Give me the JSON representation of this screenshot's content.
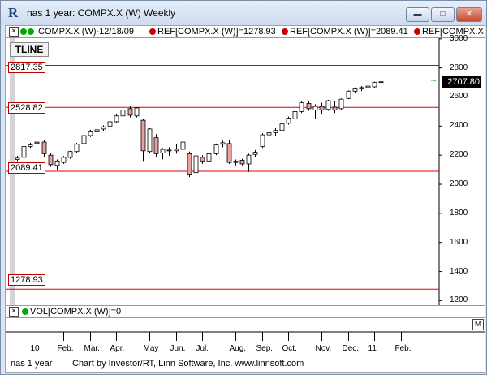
{
  "window": {
    "title": "nas 1 year: COMPX.X (W) Weekly",
    "buttons": {
      "minimize": "▬",
      "maximize": "□",
      "close": "✕"
    }
  },
  "header": {
    "close_symbol": "×",
    "series": "COMPX.X (W)-12/18/09",
    "ref1": "REF[COMPX.X (W)]=1278.93",
    "ref2": "REF[COMPX.X (W)]=2089.41",
    "ref3": "REF[COMPX.X"
  },
  "tline_button": "TLINE",
  "price_tags": {
    "r1": "2817.35",
    "r2": "2528.82",
    "r3": "2089.41",
    "r4": "1278.93"
  },
  "last_price": "2707.80",
  "last_marker": "→",
  "volume_row": {
    "close_symbol": "×",
    "label": "VOL[COMPX.X (W)]=0"
  },
  "bottom_marker": "M",
  "status": {
    "name": "nas 1 year",
    "credit": "Chart by Investor/RT, Linn Software, Inc. www.linnsoft.com"
  },
  "colors": {
    "up_candle": "#ffffff",
    "down_candle": "#e8a0a0",
    "ref_line": "#e00000",
    "last_price_bg": "#000000",
    "ref_dot": "#cc0000",
    "series_dot": "#00aa00"
  },
  "chart_data": {
    "type": "candlestick",
    "y_ticks": [
      1200,
      1400,
      1600,
      1800,
      2000,
      2200,
      2400,
      2600,
      2800,
      3000
    ],
    "y_tick_labels": [
      "1200",
      "1400",
      "1600",
      "1800",
      "2000",
      "2200",
      "2400",
      "2600",
      "2800",
      "3000"
    ],
    "ylim": [
      1180,
      3010
    ],
    "x_ticks": [
      {
        "label": "10",
        "week": 3
      },
      {
        "label": "Feb.",
        "week": 7
      },
      {
        "label": "Mar.",
        "week": 11
      },
      {
        "label": "Apr.",
        "week": 15
      },
      {
        "label": "May",
        "week": 20
      },
      {
        "label": "Jun.",
        "week": 24
      },
      {
        "label": "Jul.",
        "week": 28
      },
      {
        "label": "Aug.",
        "week": 33
      },
      {
        "label": "Sep.",
        "week": 37
      },
      {
        "label": "Oct.",
        "week": 41
      },
      {
        "label": "Nov.",
        "week": 46
      },
      {
        "label": "Dec.",
        "week": 50
      },
      {
        "label": "11",
        "week": 54
      },
      {
        "label": "Feb.",
        "week": 58
      }
    ],
    "ref_lines": [
      2817.35,
      2528.82,
      2089.41,
      1278.93
    ],
    "candles": [
      {
        "o": 2170,
        "h": 2195,
        "l": 2160,
        "c": 2180
      },
      {
        "o": 2185,
        "h": 2270,
        "l": 2175,
        "c": 2260
      },
      {
        "o": 2260,
        "h": 2285,
        "l": 2250,
        "c": 2270
      },
      {
        "o": 2290,
        "h": 2310,
        "l": 2265,
        "c": 2280
      },
      {
        "o": 2290,
        "h": 2305,
        "l": 2190,
        "c": 2210
      },
      {
        "o": 2200,
        "h": 2215,
        "l": 2120,
        "c": 2135
      },
      {
        "o": 2130,
        "h": 2170,
        "l": 2100,
        "c": 2160
      },
      {
        "o": 2150,
        "h": 2195,
        "l": 2140,
        "c": 2185
      },
      {
        "o": 2185,
        "h": 2230,
        "l": 2175,
        "c": 2225
      },
      {
        "o": 2225,
        "h": 2285,
        "l": 2215,
        "c": 2275
      },
      {
        "o": 2280,
        "h": 2345,
        "l": 2270,
        "c": 2335
      },
      {
        "o": 2335,
        "h": 2375,
        "l": 2325,
        "c": 2360
      },
      {
        "o": 2360,
        "h": 2385,
        "l": 2345,
        "c": 2375
      },
      {
        "o": 2380,
        "h": 2405,
        "l": 2365,
        "c": 2395
      },
      {
        "o": 2400,
        "h": 2440,
        "l": 2390,
        "c": 2430
      },
      {
        "o": 2430,
        "h": 2480,
        "l": 2420,
        "c": 2470
      },
      {
        "o": 2470,
        "h": 2530,
        "l": 2460,
        "c": 2510
      },
      {
        "o": 2520,
        "h": 2535,
        "l": 2460,
        "c": 2475
      },
      {
        "o": 2470,
        "h": 2530,
        "l": 2460,
        "c": 2525
      },
      {
        "o": 2440,
        "h": 2450,
        "l": 2160,
        "c": 2230
      },
      {
        "o": 2225,
        "h": 2385,
        "l": 2215,
        "c": 2380
      },
      {
        "o": 2320,
        "h": 2345,
        "l": 2190,
        "c": 2210
      },
      {
        "o": 2215,
        "h": 2250,
        "l": 2170,
        "c": 2240
      },
      {
        "o": 2235,
        "h": 2255,
        "l": 2195,
        "c": 2230
      },
      {
        "o": 2230,
        "h": 2275,
        "l": 2210,
        "c": 2240
      },
      {
        "o": 2240,
        "h": 2300,
        "l": 2225,
        "c": 2290
      },
      {
        "o": 2210,
        "h": 2225,
        "l": 2050,
        "c": 2070
      },
      {
        "o": 2080,
        "h": 2200,
        "l": 2075,
        "c": 2195
      },
      {
        "o": 2185,
        "h": 2200,
        "l": 2140,
        "c": 2160
      },
      {
        "o": 2160,
        "h": 2220,
        "l": 2150,
        "c": 2210
      },
      {
        "o": 2210,
        "h": 2280,
        "l": 2200,
        "c": 2270
      },
      {
        "o": 2275,
        "h": 2300,
        "l": 2255,
        "c": 2285
      },
      {
        "o": 2280,
        "h": 2305,
        "l": 2140,
        "c": 2150
      },
      {
        "o": 2150,
        "h": 2170,
        "l": 2130,
        "c": 2160
      },
      {
        "o": 2165,
        "h": 2175,
        "l": 2130,
        "c": 2140
      },
      {
        "o": 2140,
        "h": 2210,
        "l": 2085,
        "c": 2200
      },
      {
        "o": 2205,
        "h": 2235,
        "l": 2190,
        "c": 2220
      },
      {
        "o": 2260,
        "h": 2350,
        "l": 2250,
        "c": 2340
      },
      {
        "o": 2340,
        "h": 2375,
        "l": 2320,
        "c": 2355
      },
      {
        "o": 2355,
        "h": 2385,
        "l": 2330,
        "c": 2370
      },
      {
        "o": 2370,
        "h": 2425,
        "l": 2360,
        "c": 2415
      },
      {
        "o": 2420,
        "h": 2465,
        "l": 2410,
        "c": 2455
      },
      {
        "o": 2450,
        "h": 2510,
        "l": 2440,
        "c": 2500
      },
      {
        "o": 2500,
        "h": 2570,
        "l": 2490,
        "c": 2560
      },
      {
        "o": 2555,
        "h": 2570,
        "l": 2505,
        "c": 2520
      },
      {
        "o": 2510,
        "h": 2550,
        "l": 2450,
        "c": 2535
      },
      {
        "o": 2535,
        "h": 2560,
        "l": 2480,
        "c": 2510
      },
      {
        "o": 2515,
        "h": 2580,
        "l": 2505,
        "c": 2575
      },
      {
        "o": 2530,
        "h": 2570,
        "l": 2490,
        "c": 2510
      },
      {
        "o": 2520,
        "h": 2590,
        "l": 2510,
        "c": 2585
      },
      {
        "o": 2590,
        "h": 2645,
        "l": 2585,
        "c": 2640
      },
      {
        "o": 2640,
        "h": 2665,
        "l": 2625,
        "c": 2655
      },
      {
        "o": 2655,
        "h": 2675,
        "l": 2640,
        "c": 2665
      },
      {
        "o": 2665,
        "h": 2685,
        "l": 2650,
        "c": 2675
      },
      {
        "o": 2670,
        "h": 2705,
        "l": 2665,
        "c": 2700
      },
      {
        "o": 2700,
        "h": 2715,
        "l": 2690,
        "c": 2705
      }
    ]
  }
}
